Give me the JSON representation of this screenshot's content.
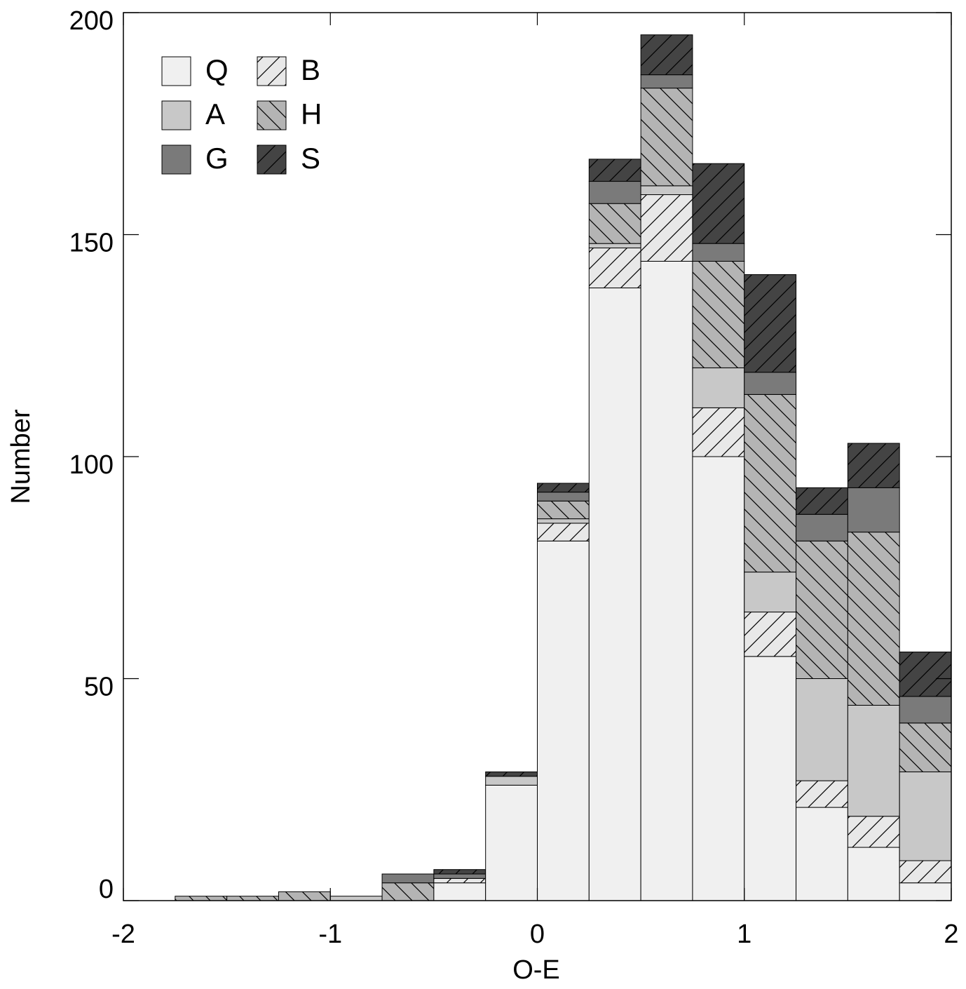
{
  "chart_data": {
    "type": "histogram",
    "xlabel": "O-E",
    "ylabel": "Number",
    "bins": [
      -2,
      -1.75,
      -1.5,
      -1.25,
      -1,
      -0.75,
      -0.5,
      -0.25,
      0,
      0.25,
      0.5,
      0.75,
      1,
      1.25,
      1.5,
      1.75,
      2
    ],
    "series": [
      {
        "name": "Q",
        "color": "#f0f0f0",
        "values": [
          0,
          0,
          0,
          0,
          0,
          0,
          4,
          26,
          81,
          138,
          144,
          100,
          55,
          21,
          12,
          4
        ]
      },
      {
        "name": "A",
        "color": "#c8c8c8",
        "values": [
          0,
          0,
          0,
          0,
          1,
          0,
          0,
          2,
          1,
          1,
          2,
          9,
          9,
          23,
          25,
          20
        ]
      },
      {
        "name": "G",
        "color": "#7a7a7a",
        "values": [
          0,
          0,
          0,
          0,
          0,
          2,
          1,
          0,
          2,
          5,
          3,
          4,
          5,
          6,
          10,
          6
        ]
      },
      {
        "name": "B",
        "color": "#e8e8e8",
        "hatch": "/",
        "values": [
          0,
          0,
          0,
          0,
          0,
          0,
          1,
          0,
          4,
          9,
          15,
          11,
          10,
          6,
          7,
          5
        ]
      },
      {
        "name": "H",
        "color": "#b4b4b4",
        "hatch": "\\",
        "values": [
          0,
          1,
          1,
          2,
          0,
          4,
          0,
          0,
          4,
          9,
          22,
          24,
          40,
          31,
          39,
          11
        ]
      },
      {
        "name": "S",
        "color": "#444444",
        "hatch": "/",
        "values": [
          0,
          0,
          0,
          0,
          0,
          0,
          1,
          1,
          2,
          5,
          9,
          18,
          22,
          6,
          10,
          10
        ]
      }
    ],
    "xlim": [
      -2,
      2
    ],
    "xticks": [
      -2,
      -1,
      0,
      1,
      2
    ],
    "ylim": [
      0,
      200
    ],
    "yticks": [
      0,
      50,
      100,
      150,
      200
    ],
    "legend": "upper-left"
  }
}
